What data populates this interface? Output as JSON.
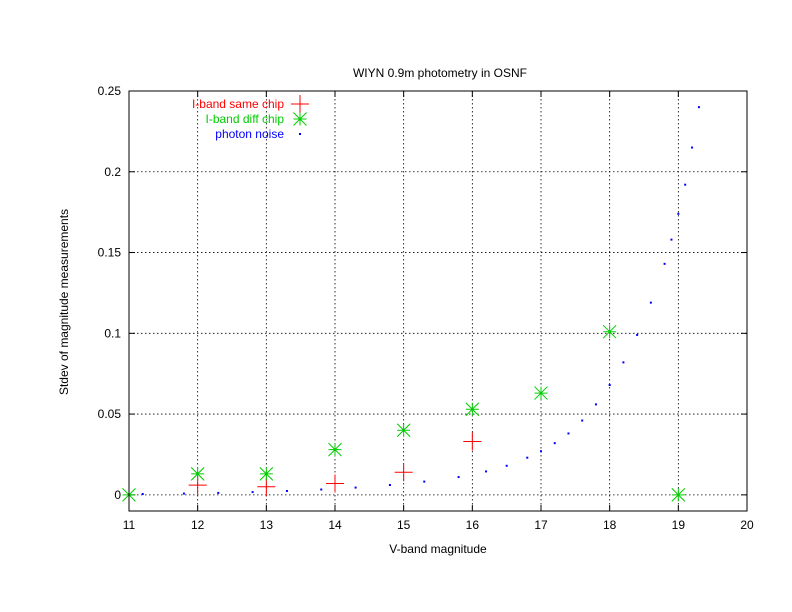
{
  "chart_data": {
    "type": "scatter",
    "title": "WIYN 0.9m photometry in OSNF",
    "xlabel": "V-band magnitude",
    "ylabel": "Stdev of magnitude measurements",
    "xlim": [
      11,
      20
    ],
    "ylim": [
      -0.01,
      0.25
    ],
    "xticks": [
      "11",
      "12",
      "13",
      "14",
      "15",
      "16",
      "17",
      "18",
      "19",
      "20"
    ],
    "yticks": [
      "0",
      "0.05",
      "0.1",
      "0.15",
      "0.2",
      "0.25"
    ],
    "grid": true,
    "legend_position": "top-left",
    "series": [
      {
        "name": "I-band same chip",
        "marker": "plus",
        "color": "#ff0000",
        "x": [
          12,
          13,
          14,
          15,
          16
        ],
        "y": [
          0.006,
          0.005,
          0.007,
          0.014,
          0.033
        ]
      },
      {
        "name": "I-band diff chip",
        "marker": "star",
        "color": "#00cc00",
        "x": [
          11,
          12,
          13,
          14,
          15,
          16,
          17,
          18,
          19
        ],
        "y": [
          0.0,
          0.013,
          0.013,
          0.028,
          0.04,
          0.053,
          0.063,
          0.101,
          0.0
        ]
      },
      {
        "name": "photon noise",
        "marker": "dot",
        "color": "#0000ff",
        "x": [
          11.2,
          11.8,
          12.3,
          12.8,
          13.3,
          13.8,
          14.3,
          14.8,
          15.3,
          15.8,
          16.2,
          16.5,
          16.8,
          17.0,
          17.2,
          17.4,
          17.6,
          17.8,
          18.0,
          18.2,
          18.4,
          18.6,
          18.8,
          18.9,
          19.0,
          19.1,
          19.2,
          19.3
        ],
        "y": [
          0.0005,
          0.0008,
          0.0012,
          0.0017,
          0.0024,
          0.0033,
          0.0045,
          0.0061,
          0.0082,
          0.011,
          0.0145,
          0.018,
          0.023,
          0.027,
          0.032,
          0.038,
          0.046,
          0.056,
          0.068,
          0.082,
          0.099,
          0.119,
          0.143,
          0.158,
          0.174,
          0.192,
          0.215,
          0.24
        ]
      }
    ]
  }
}
